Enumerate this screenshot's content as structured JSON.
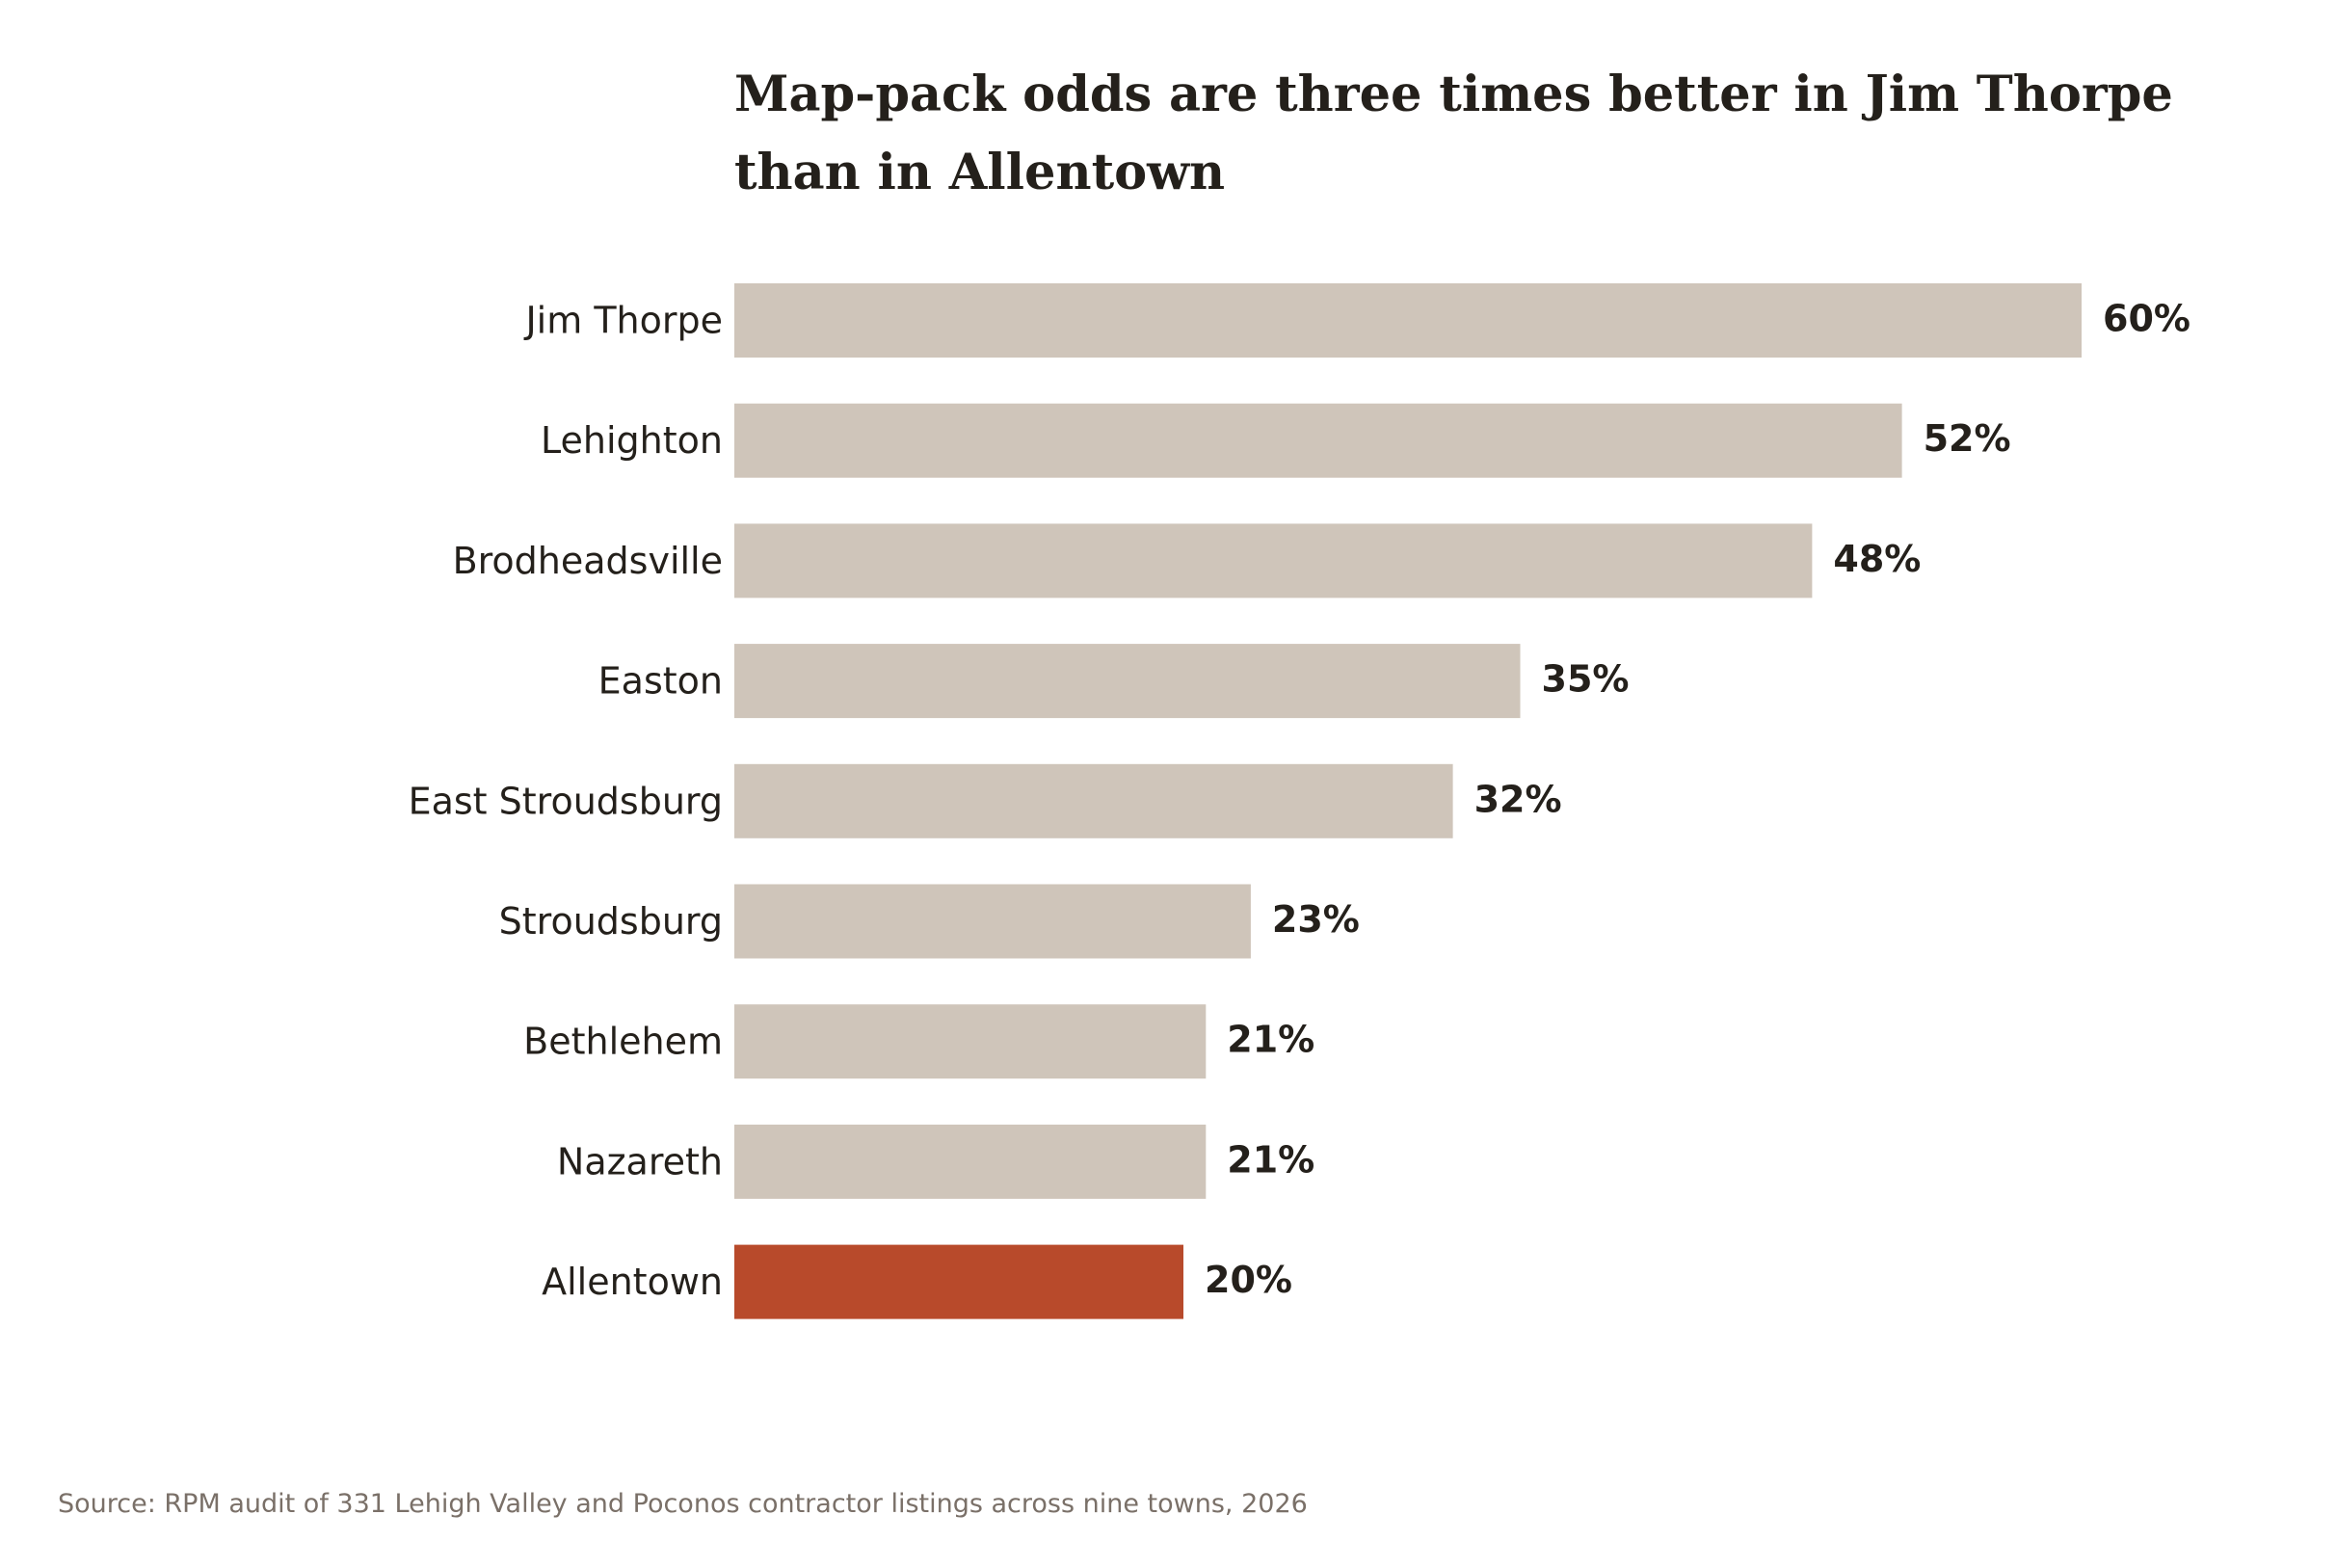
{
  "chart_data": {
    "type": "bar",
    "orientation": "horizontal",
    "title": "Map-pack odds are three times better in Jim Thorpe than in Allentown",
    "source": "Source: RPM audit of 331 Lehigh Valley and Poconos contractor listings across nine towns, 2026",
    "categories": [
      "Jim Thorpe",
      "Lehighton",
      "Brodheadsville",
      "Easton",
      "East Stroudsburg",
      "Stroudsburg",
      "Bethlehem",
      "Nazareth",
      "Allentown"
    ],
    "values": [
      60,
      52,
      48,
      35,
      32,
      23,
      21,
      21,
      20
    ],
    "value_labels": [
      "60%",
      "52%",
      "48%",
      "35%",
      "32%",
      "23%",
      "21%",
      "21%",
      "20%"
    ],
    "highlight": "Allentown",
    "xlim": [
      0,
      60
    ],
    "grid": false,
    "legend": "none",
    "colors": {
      "bar": "#cfc5ba",
      "highlight": "#b84a2b",
      "text": "#24201b",
      "source": "#7a7068"
    }
  }
}
